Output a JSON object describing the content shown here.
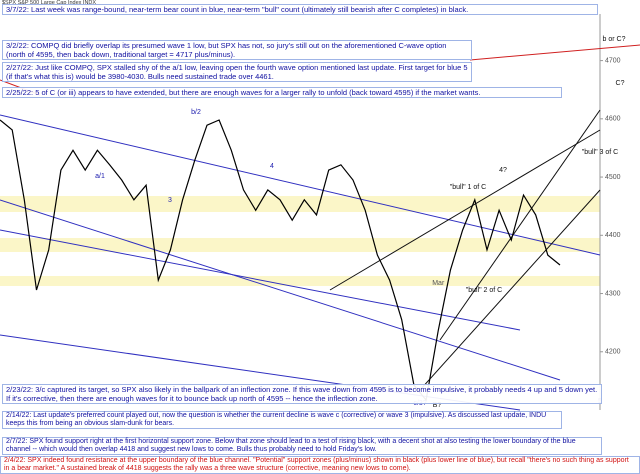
{
  "header": "$SPX S&P 500 Large Cap Index INDX",
  "chart_data": {
    "type": "line",
    "categories": [
      null,
      null,
      null,
      null,
      null,
      null,
      null,
      null,
      null,
      null,
      null,
      null,
      null,
      null,
      null,
      null,
      null,
      null,
      null,
      null,
      null,
      null,
      null,
      null,
      null,
      null,
      null,
      null,
      null,
      null,
      null,
      null,
      null,
      null,
      null,
      null,
      "Mar",
      null,
      null,
      null,
      null,
      null,
      null,
      null,
      null,
      null,
      null
    ],
    "series": [
      {
        "name": "SPX",
        "color": "#000000",
        "values": [
          4598,
          4581,
          4461,
          4306,
          4375,
          4512,
          4546,
          4512,
          4546,
          4521,
          4495,
          4461,
          4486,
          4323,
          4375,
          4461,
          4529,
          4589,
          4598,
          4546,
          4478,
          4443,
          4478,
          4461,
          4426,
          4461,
          4435,
          4512,
          4521,
          4495,
          4443,
          4366,
          4323,
          4255,
          4143,
          4117,
          4237,
          4340,
          4409,
          4461,
          4375,
          4443,
          4392,
          4469,
          4435,
          4366,
          4349
        ]
      }
    ],
    "ylim": [
      4100,
      4780
    ],
    "yticks": [
      4200,
      4300,
      4400,
      4500,
      4600,
      4700
    ],
    "wave_labels": [
      "b/2",
      "a/1",
      "3",
      "4",
      "c/3?",
      "B?",
      "5",
      "4?",
      "\"bull\" 3 of C",
      "\"bull\" 1 of C",
      "\"bull\" 2 of C",
      "C?",
      "b or C?"
    ],
    "notes": [
      "3/7/22:  Last week was range-bound, near-term bear count in blue, near-term \"bull\" count (ultimately still bearish after C completes) in black.",
      "3/2/22:  COMPQ did briefly overlap its presumed wave 1 low, but SPX has not, so jury's still out on the aforementioned C-wave option (north of 4595, then back down, traditional target = 4717 plus/minus).",
      "2/27/22:  Just like COMPQ, SPX stalled shy of the a/1 low, leaving open the fourth wave option mentioned last update.  First target for blue 5 (if that's what this is) would be 3980-4030.  Bulls need sustained trade over 4461.",
      "2/25/22:  5 of C (or iii) appears to have extended, but there are enough waves for a larger rally to unfold (back toward 4595) if the market wants.",
      "2/23/22:  3/c captured its target, so SPX also likely in the ballpark of an inflection zone.  If this wave down from 4595 is to become impulsive, it probably needs 4 up and 5 down yet.  If it's corrective, then there are enough waves for it to bounce back up north of 4595 -- hence the inflection zone.",
      "2/14/22:  Last update's preferred count played out, now the question is whether the current decline is wave c (corrective) or wave 3 (impulsive).  As discussed last update, INDU keeps this from being an obvious slam-dunk for bears.",
      "2/7/22:  SPX found support right at the first horizontal support zone.  Below that zone should lead to a test of rising black, with a decent shot at also testing the lower boundary of the blue channel -- which would then overlap 4418 and suggest new lows to come.  Bulls thus probably need to hold Friday's low.",
      "2/4/22:  SPX indeed found resistance at the upper boundary of the blue channel.  \"Potential\" support zones (plus/minus) shown in black (plus lower line of blue), but recall \"there's no such thing as support in a bear market.\"  A sustained break of 4418 suggests the rally was a three wave structure (corrective, meaning new lows to come)."
    ]
  }
}
